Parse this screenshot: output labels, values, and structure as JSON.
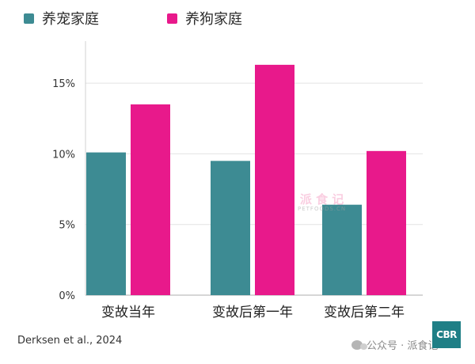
{
  "legend": {
    "items": [
      {
        "label": "养宠家庭",
        "color": "#3d8b93"
      },
      {
        "label": "养狗家庭",
        "color": "#e8198b"
      }
    ]
  },
  "chart_data": {
    "type": "bar",
    "categories": [
      "变故当年",
      "变故后第一年",
      "变故后第二年"
    ],
    "series": [
      {
        "name": "养宠家庭",
        "values": [
          10.1,
          9.5,
          6.4
        ],
        "color": "#3d8b93"
      },
      {
        "name": "养狗家庭",
        "values": [
          13.5,
          16.3,
          10.2
        ],
        "color": "#e8198b"
      }
    ],
    "ylim": [
      0,
      18
    ],
    "yticks": [
      0,
      5,
      10,
      15
    ],
    "ytick_labels": [
      "0%",
      "5%",
      "10%",
      "15%"
    ],
    "grid": true,
    "legend_position": "top-left",
    "xlabel": "",
    "ylabel": ""
  },
  "source": "Derksen et al., 2024",
  "watermark": {
    "brand": "公众号 · 派食记",
    "center_line1": "派 食 记",
    "center_line2": "PETFOODS.CN",
    "logo_text": "CBR"
  }
}
